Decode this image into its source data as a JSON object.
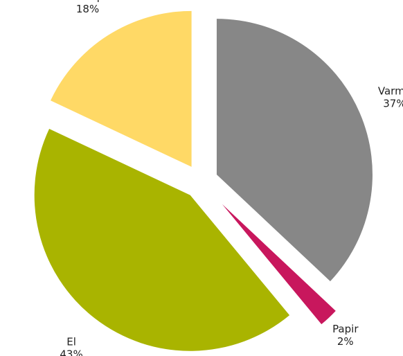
{
  "chart_data": {
    "type": "pie",
    "categories": [
      "Varme",
      "Papir",
      "El",
      "Biltransport"
    ],
    "values": [
      37,
      2,
      43,
      18
    ],
    "value_labels": [
      "37%",
      "2%",
      "43%",
      "18%"
    ],
    "colors": [
      "#878787",
      "#c8175d",
      "#a9b400",
      "#ffd966"
    ]
  }
}
